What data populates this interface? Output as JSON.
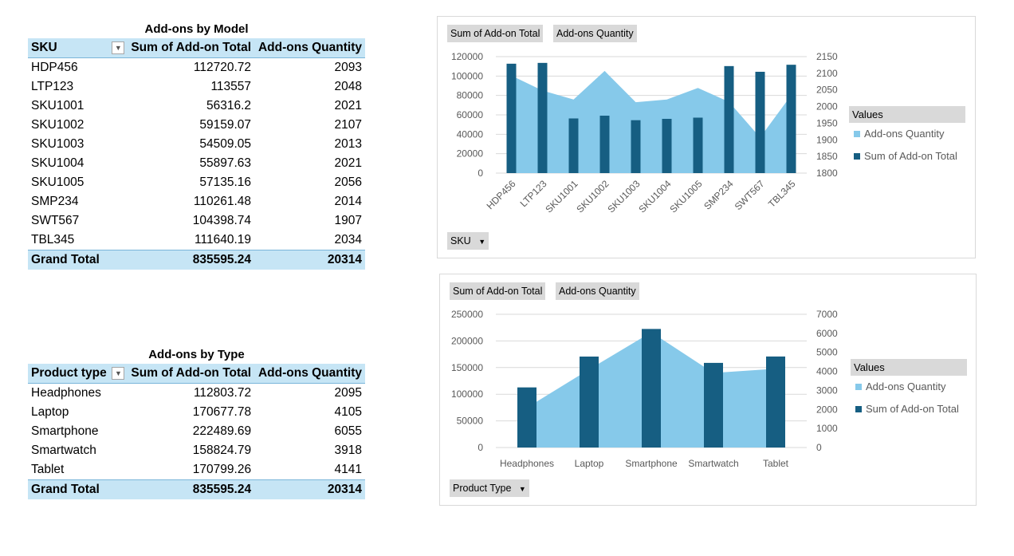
{
  "colors": {
    "header_bg": "#c6e5f5",
    "area": "#86c9ea",
    "bar": "#165e82",
    "field_btn": "#d9d9d9"
  },
  "table1": {
    "title": "Add-ons by Model",
    "headers": [
      "SKU",
      "Sum of Add-on Total",
      "Add-ons Quantity"
    ],
    "rows": [
      [
        "HDP456",
        "112720.72",
        "2093"
      ],
      [
        "LTP123",
        "113557",
        "2048"
      ],
      [
        "SKU1001",
        "56316.2",
        "2021"
      ],
      [
        "SKU1002",
        "59159.07",
        "2107"
      ],
      [
        "SKU1003",
        "54509.05",
        "2013"
      ],
      [
        "SKU1004",
        "55897.63",
        "2021"
      ],
      [
        "SKU1005",
        "57135.16",
        "2056"
      ],
      [
        "SMP234",
        "110261.48",
        "2014"
      ],
      [
        "SWT567",
        "104398.74",
        "1907"
      ],
      [
        "TBL345",
        "111640.19",
        "2034"
      ]
    ],
    "total": [
      "Grand Total",
      "835595.24",
      "20314"
    ]
  },
  "table2": {
    "title": "Add-ons by Type",
    "headers": [
      "Product type",
      "Sum of Add-on Total",
      "Add-ons Quantity"
    ],
    "rows": [
      [
        "Headphones",
        "112803.72",
        "2095"
      ],
      [
        "Laptop",
        "170677.78",
        "4105"
      ],
      [
        "Smartphone",
        "222489.69",
        "6055"
      ],
      [
        "Smartwatch",
        "158824.79",
        "3918"
      ],
      [
        "Tablet",
        "170799.26",
        "4141"
      ]
    ],
    "total": [
      "Grand Total",
      "835595.24",
      "20314"
    ]
  },
  "chart1": {
    "field_buttons": [
      "Sum of Add-on Total",
      "Add-ons Quantity"
    ],
    "axis_button": "SKU",
    "legend_title": "Values",
    "legend_items": [
      "Add-ons Quantity",
      "Sum of Add-on Total"
    ]
  },
  "chart2": {
    "field_buttons": [
      "Sum of Add-on Total",
      "Add-ons Quantity"
    ],
    "axis_button": "Product Type",
    "legend_title": "Values",
    "legend_items": [
      "Add-ons Quantity",
      "Sum of Add-on Total"
    ]
  },
  "chart_data": [
    {
      "type": "bar",
      "categories": [
        "HDP456",
        "LTP123",
        "SKU1001",
        "SKU1002",
        "SKU1003",
        "SKU1004",
        "SKU1005",
        "SMP234",
        "SWT567",
        "TBL345"
      ],
      "series": [
        {
          "name": "Sum of Add-on Total",
          "type": "bar",
          "axis": "primary",
          "values": [
            112720.72,
            113557,
            56316.2,
            59159.07,
            54509.05,
            55897.63,
            57135.16,
            110261.48,
            104398.74,
            111640.19
          ]
        },
        {
          "name": "Add-ons Quantity",
          "type": "area",
          "axis": "secondary",
          "values": [
            2093,
            2048,
            2021,
            2107,
            2013,
            2021,
            2056,
            2014,
            1907,
            2034
          ]
        }
      ],
      "ylim": [
        0,
        120000
      ],
      "yticks": [
        "0",
        "20000",
        "40000",
        "60000",
        "80000",
        "100000",
        "120000"
      ],
      "y2lim": [
        1800,
        2150
      ],
      "y2ticks": [
        "1800",
        "1850",
        "1900",
        "1950",
        "2000",
        "2050",
        "2100",
        "2150"
      ],
      "grid": true,
      "legend": "right"
    },
    {
      "type": "bar",
      "categories": [
        "Headphones",
        "Laptop",
        "Smartphone",
        "Smartwatch",
        "Tablet"
      ],
      "series": [
        {
          "name": "Sum of Add-on Total",
          "type": "bar",
          "axis": "primary",
          "values": [
            112803.72,
            170677.78,
            222489.69,
            158824.79,
            170799.26
          ]
        },
        {
          "name": "Add-ons Quantity",
          "type": "area",
          "axis": "secondary",
          "values": [
            2095,
            4105,
            6055,
            3918,
            4141
          ]
        }
      ],
      "ylim": [
        0,
        250000
      ],
      "yticks": [
        "0",
        "50000",
        "100000",
        "150000",
        "200000",
        "250000"
      ],
      "y2lim": [
        0,
        7000
      ],
      "y2ticks": [
        "0",
        "1000",
        "2000",
        "3000",
        "4000",
        "5000",
        "6000",
        "7000"
      ],
      "grid": true,
      "legend": "right"
    }
  ]
}
